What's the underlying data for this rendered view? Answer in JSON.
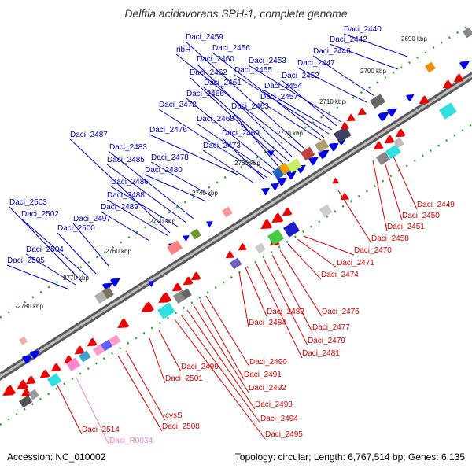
{
  "title": "Delftia acidovorans SPH-1, complete genome",
  "footer": {
    "accession": "Accession: NC_010002",
    "summary": "Topology: circular; Length: 6,767,514 bp; Genes: 6,135"
  },
  "colors": {
    "forward_strand_label": "#0000cc",
    "reverse_strand_label": "#dd0000",
    "rna_label": "#ee88bb",
    "backbone": "#888888"
  },
  "scale_ticks": [
    "2690 kbp",
    "2700 kbp",
    "2710 kbp",
    "2720 kbp",
    "2730 kbp",
    "2740 kbp",
    "2750 kbp",
    "2760 kbp",
    "2770 kbp",
    "2780 kbp"
  ],
  "forward_genes": [
    "Daci_2440",
    "Daci_2442",
    "Daci_2446",
    "Daci_2447",
    "Daci_2452",
    "Daci_2453",
    "Daci_2454",
    "Daci_2455",
    "Daci_2456",
    "Daci_2457",
    "Daci_2459",
    "ribH",
    "Daci_2460",
    "Daci_2461",
    "Daci_2462",
    "Daci_2463",
    "Daci_2466",
    "Daci_2468",
    "Daci_2469",
    "Daci_2472",
    "Daci_2473",
    "Daci_2476",
    "Daci_2478",
    "Daci_2480",
    "Daci_2483",
    "Daci_2485",
    "Daci_2486",
    "Daci_2487",
    "Daci_2488",
    "Daci_2489",
    "Daci_2497",
    "Daci_2500",
    "Daci_2502",
    "Daci_2503",
    "Daci_2504",
    "Daci_2505"
  ],
  "reverse_genes": [
    "Daci_2449",
    "Daci_2450",
    "Daci_2451",
    "Daci_2458",
    "Daci_2470",
    "Daci_2471",
    "Daci_2474",
    "Daci_2475",
    "Daci_2477",
    "Daci_2479",
    "Daci_2481",
    "Daci_2482",
    "Daci_2484",
    "Daci_2490",
    "Daci_2491",
    "Daci_2492",
    "Daci_2493",
    "Daci_2494",
    "Daci_2495",
    "Daci_2499",
    "Daci_2501",
    "cysS",
    "Daci_2508",
    "Daci_2514"
  ],
  "rna_genes": [
    "Daci_R0034"
  ]
}
